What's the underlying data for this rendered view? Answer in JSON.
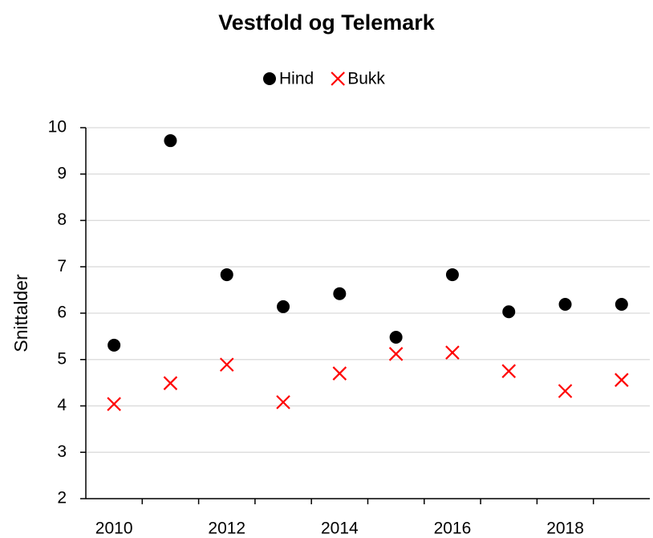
{
  "chart_data": {
    "type": "scatter",
    "title": "Vestfold og Telemark",
    "y_label": "Snittalder",
    "categories": [
      "2010",
      null,
      "2012",
      null,
      "2014",
      null,
      "2016",
      null,
      "2018",
      null
    ],
    "series": [
      {
        "name": "Hind",
        "color": "#000000",
        "marker": "circle",
        "values": [
          5.31,
          9.72,
          6.83,
          6.14,
          6.42,
          5.48,
          6.83,
          6.03,
          6.19,
          6.19
        ]
      },
      {
        "name": "Bukk",
        "color": "#ff0000",
        "marker": "x",
        "values": [
          4.04,
          4.49,
          4.89,
          4.08,
          4.7,
          5.12,
          5.15,
          4.75,
          4.32,
          4.56
        ]
      }
    ],
    "ylim": [
      2,
      10
    ],
    "yticks": [
      2,
      3,
      4,
      5,
      6,
      7,
      8,
      9,
      10
    ],
    "grid": true,
    "legend": "top"
  }
}
